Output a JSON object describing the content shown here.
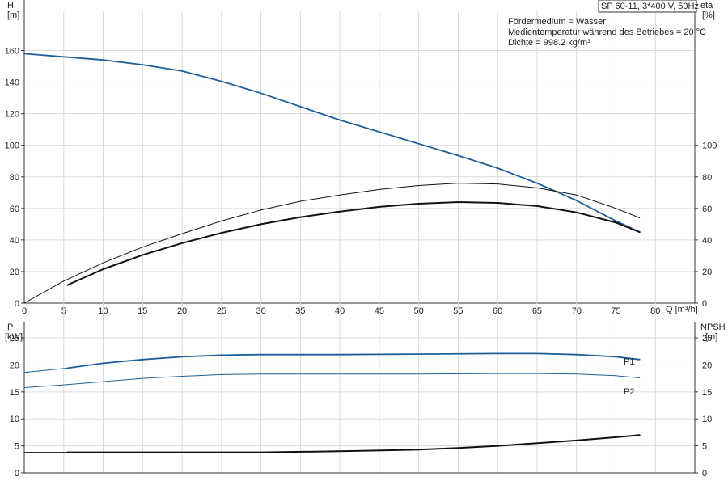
{
  "header": {
    "model": "SP 60-11, 3*400 V, 50Hz",
    "info_lines": [
      "Fördermedium = Wasser",
      "Medientemperatur während des Betriebes = 20 °C",
      "Dichte = 998.2 kg/m³"
    ]
  },
  "colors": {
    "blue": "#1f5f99",
    "black": "#111111",
    "grid": "#d9d9d9",
    "axis": "#333333"
  },
  "chart_data": [
    {
      "type": "line",
      "title": "",
      "xlabel": "Q [m³/h]",
      "xlim": [
        0,
        85
      ],
      "x_ticks": [
        0,
        5,
        10,
        15,
        20,
        25,
        30,
        35,
        40,
        45,
        50,
        55,
        60,
        65,
        70,
        75,
        80
      ],
      "y_left_label": [
        "H",
        "[m]"
      ],
      "y_left_lim": [
        0,
        170
      ],
      "y_left_ticks": [
        0,
        20,
        40,
        60,
        80,
        100,
        120,
        140,
        160
      ],
      "y_right_label": [
        "eta",
        "[%]"
      ],
      "y_right_lim": [
        0,
        170
      ],
      "y_right_ticks": [
        0,
        20,
        40,
        60,
        80,
        100
      ],
      "grid": true,
      "series": [
        {
          "key": "H",
          "color": "blue",
          "width": 1.8,
          "x": [
            0,
            5,
            10,
            15,
            20,
            25,
            30,
            35,
            40,
            45,
            50,
            55,
            60,
            65,
            70,
            75,
            78
          ],
          "y": [
            158,
            156,
            154,
            151,
            147,
            140.5,
            133,
            124.5,
            116,
            108.5,
            101,
            93.5,
            85.5,
            76,
            65,
            52,
            45
          ]
        },
        {
          "key": "eta-thin",
          "color": "black",
          "width": 1.0,
          "x": [
            0,
            5,
            10,
            15,
            20,
            25,
            30,
            35,
            40,
            45,
            50,
            55,
            60,
            65,
            70,
            75,
            78
          ],
          "y": [
            0,
            14,
            25.5,
            35.5,
            44,
            52,
            59,
            64.5,
            68.5,
            72,
            74.5,
            76,
            75.5,
            73,
            68.5,
            60,
            54
          ]
        },
        {
          "key": "eta-thick",
          "color": "black",
          "width": 2.0,
          "x": [
            5.5,
            10,
            15,
            20,
            25,
            30,
            35,
            40,
            45,
            50,
            55,
            60,
            65,
            70,
            75,
            78
          ],
          "y": [
            11.5,
            21.5,
            30.5,
            38,
            44.5,
            50,
            54.5,
            58,
            61,
            63,
            64,
            63.5,
            61.5,
            57.5,
            51,
            45
          ]
        }
      ]
    },
    {
      "type": "line",
      "title": "",
      "xlabel": "",
      "xlim": [
        0,
        85
      ],
      "x_ticks": [
        0,
        5,
        10,
        15,
        20,
        25,
        30,
        35,
        40,
        45,
        50,
        55,
        60,
        65,
        70,
        75,
        80
      ],
      "y_left_label": [
        "P",
        "[kW]"
      ],
      "y_left_lim": [
        0,
        28
      ],
      "y_left_ticks": [
        0,
        5,
        10,
        15,
        20,
        25
      ],
      "y_right_label": [
        "NPSH",
        "[m]"
      ],
      "y_right_lim": [
        0,
        28
      ],
      "y_right_ticks": [
        0,
        5,
        10,
        15,
        20,
        25
      ],
      "grid": true,
      "series": [
        {
          "key": "P1-ext",
          "color": "blue",
          "width": 1.0,
          "x": [
            0,
            5.5
          ],
          "y": [
            18.6,
            19.4
          ]
        },
        {
          "key": "P1",
          "name": "P1",
          "color": "blue",
          "width": 1.8,
          "x": [
            5.5,
            10,
            15,
            20,
            25,
            30,
            40,
            50,
            60,
            65,
            70,
            75,
            78
          ],
          "y": [
            19.4,
            20.3,
            21.0,
            21.5,
            21.8,
            21.9,
            21.9,
            22.0,
            22.1,
            22.1,
            21.9,
            21.5,
            21.0
          ]
        },
        {
          "key": "P2",
          "name": "P2",
          "color": "blue",
          "width": 1.0,
          "x": [
            0,
            5,
            10,
            15,
            20,
            25,
            30,
            40,
            50,
            60,
            65,
            70,
            75,
            78
          ],
          "y": [
            15.8,
            16.3,
            16.9,
            17.5,
            17.9,
            18.2,
            18.3,
            18.3,
            18.3,
            18.4,
            18.4,
            18.3,
            18.0,
            17.6
          ]
        },
        {
          "key": "NPSH-ext",
          "color": "black",
          "width": 1.0,
          "x": [
            0,
            5.5
          ],
          "y": [
            3.8,
            3.8
          ]
        },
        {
          "key": "NPSH",
          "color": "black",
          "width": 2.0,
          "x": [
            5.5,
            10,
            20,
            30,
            40,
            50,
            55,
            60,
            65,
            70,
            75,
            78
          ],
          "y": [
            3.8,
            3.8,
            3.8,
            3.8,
            4.0,
            4.3,
            4.6,
            5.0,
            5.5,
            6.0,
            6.6,
            7.0
          ]
        }
      ]
    }
  ]
}
